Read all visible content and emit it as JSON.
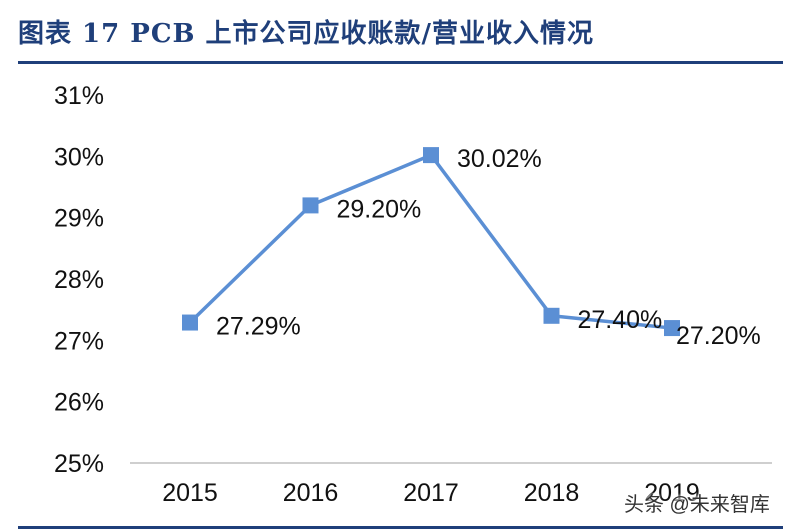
{
  "title": "图表 17   PCB 上市公司应收账款/营业收入情况",
  "watermark": "头条 @未来智库",
  "colors": {
    "title": "#1f3f7a",
    "series": "#5b8fd4",
    "axis": "#bfbfbf",
    "text": "#111111"
  },
  "chart_data": {
    "type": "line",
    "x": [
      "2015",
      "2016",
      "2017",
      "2018",
      "2019"
    ],
    "series": [
      {
        "values": [
          27.29,
          29.2,
          30.02,
          27.4,
          27.2
        ],
        "labels": [
          "27.29%",
          "29.20%",
          "30.02%",
          "27.40%",
          "27.20%"
        ]
      }
    ],
    "yticks": [
      25,
      26,
      27,
      28,
      29,
      30,
      31
    ],
    "ytick_labels": [
      "25%",
      "26%",
      "27%",
      "28%",
      "29%",
      "30%",
      "31%"
    ],
    "ylim": [
      25,
      31
    ],
    "marker": "square",
    "grid": false,
    "legend": "none"
  }
}
